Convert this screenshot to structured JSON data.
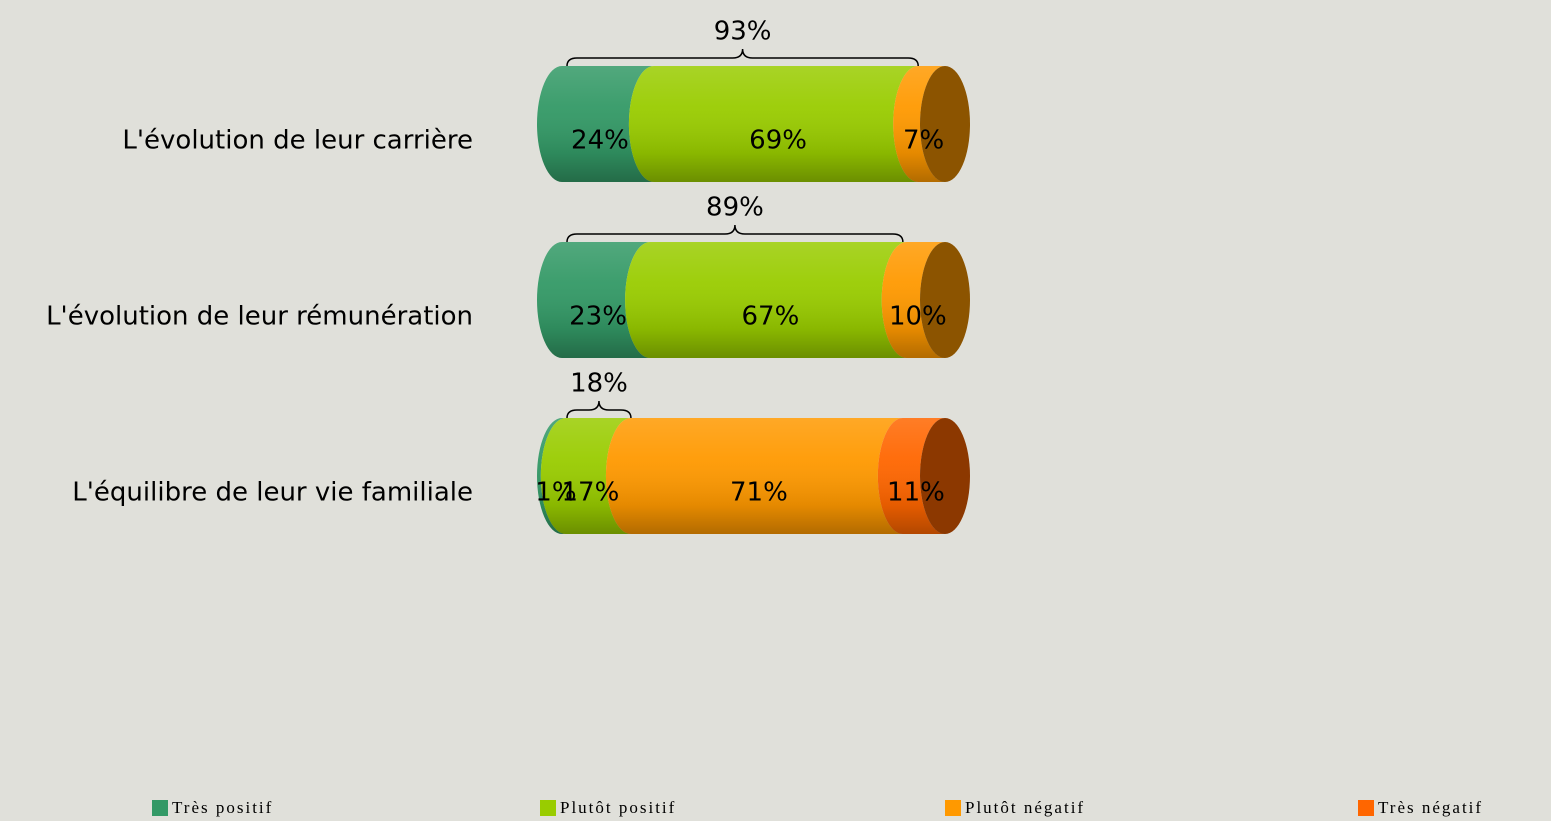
{
  "chart_data": {
    "type": "bar",
    "orientation": "horizontal",
    "stacked": true,
    "categories": [
      "L'évolution de leur carrière",
      "L'évolution de leur rémunération",
      "L'équilibre de leur vie familiale"
    ],
    "series": [
      {
        "name": "Très positif",
        "color": "#339966",
        "values": [
          24,
          23,
          1
        ],
        "value_labels": [
          "24%",
          "23%",
          "1%"
        ]
      },
      {
        "name": "Plutôt positif",
        "color": "#99cc00",
        "values": [
          69,
          67,
          17
        ],
        "value_labels": [
          "69%",
          "67%",
          "17%"
        ]
      },
      {
        "name": "Plutôt négatif",
        "color": "#ff9900",
        "values": [
          7,
          10,
          71
        ],
        "value_labels": [
          "7%",
          "10%",
          "71%"
        ]
      },
      {
        "name": "Très négatif",
        "color": "#ff6600",
        "values": [
          null,
          null,
          11
        ],
        "value_labels": [
          null,
          null,
          "11%"
        ]
      }
    ],
    "positive_totals": {
      "values": [
        93,
        89,
        18
      ],
      "value_labels": [
        "93%",
        "89%",
        "18%"
      ]
    },
    "xlim": [
      0,
      100
    ],
    "legend": "bottom"
  }
}
